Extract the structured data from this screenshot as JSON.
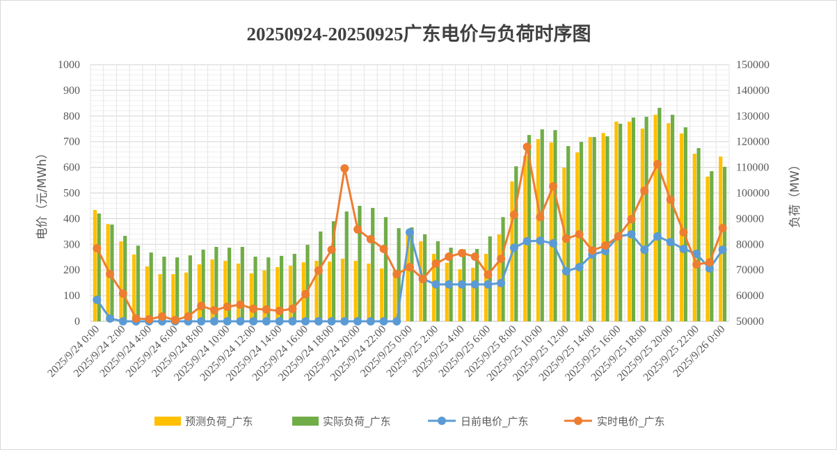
{
  "chart_data": {
    "type": "bar+line",
    "title": "20250924-20250925广东电价与负荷时序图",
    "ylabel_left": "电价（元/MWh）",
    "ylabel_right": "负荷（MW）",
    "ylim_left": [
      0,
      1000
    ],
    "ylim_right": [
      50000,
      150000
    ],
    "yticks_left": [
      "0",
      "100",
      "200",
      "300",
      "400",
      "500",
      "600",
      "700",
      "800",
      "900",
      "1000"
    ],
    "yticks_right": [
      "50000",
      "60000",
      "70000",
      "80000",
      "90000",
      "100000",
      "110000",
      "120000",
      "130000",
      "140000",
      "150000"
    ],
    "grid": true,
    "legend_position": "bottom",
    "x_tick_labels": [
      "2025/9/24 0:00",
      "2025/9/24 2:00",
      "2025/9/24 4:00",
      "2025/9/24 6:00",
      "2025/9/24 8:00",
      "2025/9/24 10:00",
      "2025/9/24 12:00",
      "2025/9/24 14:00",
      "2025/9/24 16:00",
      "2025/9/24 18:00",
      "2025/9/24 20:00",
      "2025/9/24 22:00",
      "2025/9/25 0:00",
      "2025/9/25 2:00",
      "2025/9/25 4:00",
      "2025/9/25 6:00",
      "2025/9/25 8:00",
      "2025/9/25 10:00",
      "2025/9/25 12:00",
      "2025/9/25 14:00",
      "2025/9/25 16:00",
      "2025/9/25 18:00",
      "2025/9/25 20:00",
      "2025/9/25 22:00",
      "2025/9/26 0:00"
    ],
    "series": [
      {
        "name": "预测负荷_广东",
        "kind": "bar",
        "axis": "right",
        "color": "#FFC000",
        "values": [
          93400,
          87900,
          81200,
          76000,
          71400,
          68400,
          68400,
          69000,
          72200,
          74100,
          73600,
          72500,
          68700,
          69800,
          71100,
          71700,
          73000,
          73600,
          73300,
          74400,
          73600,
          72500,
          70600,
          70000,
          84400,
          81200,
          76300,
          72800,
          70300,
          70900,
          76300,
          83900,
          104500,
          114500,
          121000,
          119700,
          109900,
          115800,
          121800,
          123400,
          127800,
          127800,
          125100,
          130500,
          127200,
          123200,
          115300,
          106400,
          114200
        ]
      },
      {
        "name": "实际负荷_广东",
        "kind": "bar",
        "axis": "right",
        "color": "#70AD47",
        "values": [
          92000,
          87700,
          83300,
          79500,
          76800,
          75200,
          74900,
          75700,
          77900,
          79000,
          78700,
          79000,
          75200,
          74900,
          75500,
          76300,
          79800,
          85000,
          89000,
          92800,
          95000,
          94200,
          90600,
          86300,
          86600,
          83900,
          81200,
          78700,
          78000,
          78200,
          83100,
          90600,
          110400,
          122600,
          124800,
          124500,
          118300,
          119900,
          121800,
          122100,
          127000,
          129400,
          129700,
          133200,
          130500,
          125600,
          117500,
          108500,
          110200
        ]
      },
      {
        "name": "日前电价_广东",
        "kind": "line",
        "axis": "left",
        "color": "#5B9BD5",
        "values": [
          84,
          11,
          0,
          0,
          0,
          0,
          0,
          0,
          0,
          0,
          0,
          0,
          0,
          0,
          0,
          0,
          0,
          0,
          0,
          0,
          0,
          0,
          0,
          0,
          347,
          165,
          144,
          144,
          144,
          144,
          144,
          149,
          287,
          312,
          314,
          304,
          195,
          211,
          260,
          274,
          331,
          339,
          279,
          331,
          309,
          282,
          263,
          206,
          279
        ]
      },
      {
        "name": "实时电价_广东",
        "kind": "line",
        "axis": "left",
        "color": "#ED7D31",
        "values": [
          285,
          184,
          108,
          11,
          8,
          19,
          5,
          19,
          60,
          43,
          57,
          65,
          49,
          46,
          41,
          49,
          106,
          198,
          279,
          596,
          358,
          320,
          282,
          184,
          211,
          165,
          225,
          252,
          266,
          252,
          182,
          244,
          415,
          680,
          406,
          526,
          322,
          339,
          276,
          295,
          331,
          398,
          509,
          612,
          474,
          347,
          222,
          230,
          363
        ]
      }
    ]
  }
}
